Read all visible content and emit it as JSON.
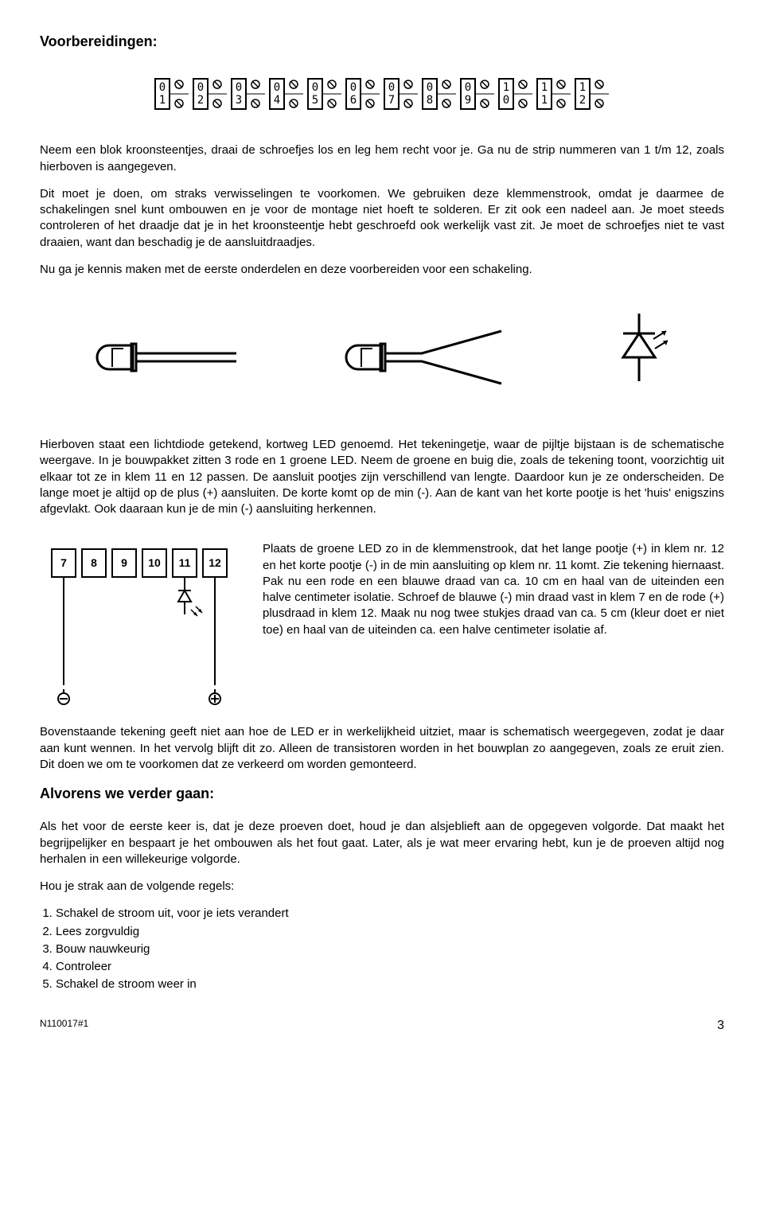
{
  "heading1": "Voorbereidingen:",
  "terminal_numbers": [
    "01",
    "02",
    "03",
    "04",
    "05",
    "06",
    "07",
    "08",
    "09",
    "10",
    "11",
    "12"
  ],
  "para1": "Neem een blok kroonsteentjes, draai de schroefjes los en leg hem recht voor je. Ga nu de strip nummeren van 1 t/m 12, zoals hierboven is aangegeven.",
  "para2": "Dit moet je doen, om straks verwisselingen te voorkomen. We gebruiken deze klemmenstrook, omdat je daarmee de schakelingen snel kunt ombouwen en je voor de montage niet hoeft te solderen. Er zit ook een nadeel aan. Je moet steeds controleren of het draadje dat je in het kroonsteentje hebt geschroefd ook werkelijk vast zit. Je moet de schroefjes niet te vast draaien, want dan beschadig je de aansluitdraadjes.",
  "para3": "Nu ga je kennis maken met de eerste onderdelen en deze voorbereiden voor een schakeling.",
  "para4": "Hierboven staat een lichtdiode getekend, kortweg LED genoemd. Het tekeningetje, waar de pijltje bijstaan is de schematische weergave. In je bouwpakket zitten 3 rode en 1 groene LED. Neem de groene en buig die, zoals de tekening toont, voorzichtig uit elkaar tot ze in klem 11 en 12 passen. De aansluit pootjes zijn verschillend van lengte. Daardoor kun je ze onderscheiden. De lange moet je altijd op de plus (+) aansluiten. De korte komt op de min (-). Aan de kant van het korte pootje is het 'huis' enigszins afgevlakt. Ook daaraan kun je de min (-) aansluiting herkennen.",
  "diagram2_labels": [
    "7",
    "8",
    "9",
    "10",
    "11",
    "12"
  ],
  "para5": "Plaats de groene LED zo in de klemmenstrook, dat het lange pootje (+) in klem nr. 12 en het korte pootje (-) in de min aansluiting op klem nr. 11 komt. Zie tekening hiernaast. Pak nu een rode en een blauwe draad van ca. 10 cm en haal van de uiteinden een halve centimeter isolatie. Schroef de blauwe (-) min draad vast in klem 7 en de rode (+) plusdraad in klem 12. Maak nu nog twee stukjes draad van ca. 5 cm (kleur doet er niet toe) en haal van de uiteinden ca. een halve centimeter isolatie af.",
  "para6": "Bovenstaande tekening geeft niet aan hoe de LED er in werkelijkheid uitziet, maar is schematisch weergegeven, zodat je daar aan kunt wennen. In het vervolg blijft dit zo. Alleen de transistoren worden in het bouwplan zo aangegeven, zoals ze eruit zien. Dit doen we om te voorkomen dat ze verkeerd om worden gemonteerd.",
  "heading2": "Alvorens we verder gaan:",
  "para7": "Als het voor de eerste keer is, dat je deze proeven doet, houd je dan alsjeblieft aan de opgegeven volgorde. Dat maakt het begrijpelijker en bespaart je het ombouwen als het fout gaat. Later, als je wat meer ervaring hebt, kun je de proeven altijd nog herhalen in een willekeurige volgorde.",
  "para8": "Hou je strak aan de volgende regels:",
  "rules": [
    "Schakel de stroom uit, voor je iets verandert",
    "Lees zorgvuldig",
    "Bouw nauwkeurig",
    "Controleer",
    "Schakel de stroom weer in"
  ],
  "footer_code": "N110017#1",
  "footer_page": "3",
  "colors": {
    "stroke": "#000000",
    "bg": "#ffffff"
  }
}
